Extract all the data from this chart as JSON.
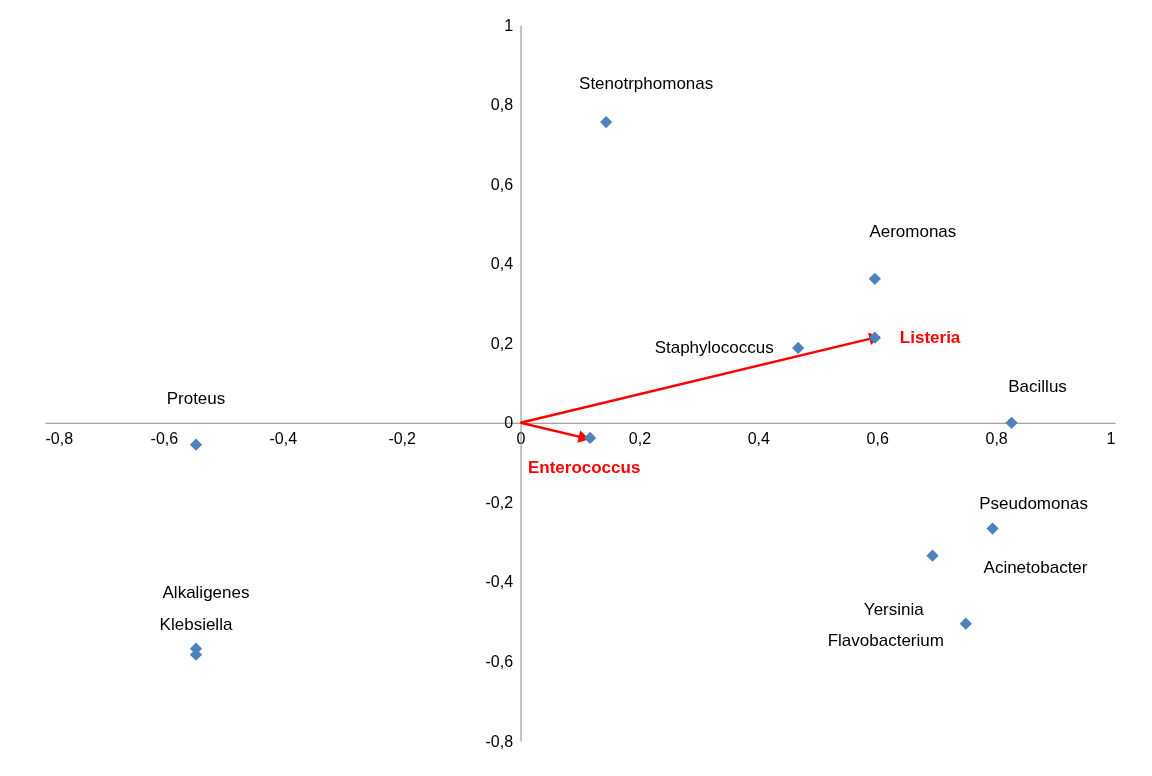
{
  "chart_data": {
    "type": "scatter",
    "xlim": [
      -0.8,
      1
    ],
    "ylim": [
      -0.8,
      1
    ],
    "xticks": [
      {
        "value": -0.8,
        "label": "-0,8"
      },
      {
        "value": -0.6,
        "label": "-0,6"
      },
      {
        "value": -0.4,
        "label": "-0,4"
      },
      {
        "value": -0.2,
        "label": "-0,2"
      },
      0,
      {
        "value": 0.2,
        "label": "0,2"
      },
      {
        "value": 0.4,
        "label": "0,4"
      },
      {
        "value": 0.6,
        "label": "0,6"
      },
      {
        "value": 0.8,
        "label": "0,8"
      },
      1
    ],
    "yticks": [
      {
        "value": -0.8,
        "label": "-0,8"
      },
      {
        "value": -0.6,
        "label": "-0,6"
      },
      {
        "value": -0.4,
        "label": "-0,4"
      },
      {
        "value": -0.2,
        "label": "-0,2"
      },
      0,
      {
        "value": 0.2,
        "label": "0,2"
      },
      {
        "value": 0.4,
        "label": "0,4"
      },
      {
        "value": 0.6,
        "label": "0,6"
      },
      {
        "value": 0.8,
        "label": "0,8"
      },
      1
    ],
    "grid": false,
    "marker": "diamond",
    "series": [
      {
        "color": "#4f81bd",
        "x": [
          0.144,
          0.596,
          0.596,
          0.467,
          0.826,
          0.117,
          -0.546,
          -0.546,
          -0.546,
          0.794,
          0.693,
          0.749
        ],
        "values": [
          0.756,
          0.362,
          0.214,
          0.188,
          0.0,
          -0.038,
          -0.055,
          -0.568,
          -0.583,
          -0.266,
          -0.334,
          -0.505
        ]
      },
      {
        "type": "line",
        "name": "Listeria",
        "color": "#ff0000",
        "marker": "triangle",
        "line_style": "solid",
        "x": [
          0,
          0.596
        ],
        "values": [
          0,
          0.214
        ]
      },
      {
        "type": "line",
        "name": "Enterococcus",
        "color": "#ff0000",
        "marker": "triangle",
        "line_style": "solid",
        "x": [
          0,
          0.107
        ],
        "values": [
          0,
          -0.038
        ]
      }
    ],
    "annotations": [
      {
        "text": "Stenotrphomonas",
        "x": 0.144,
        "y": 0.756
      },
      {
        "text": "Aeromonas",
        "x": 0.596,
        "y": 0.362
      },
      {
        "text": "Staphylococcus",
        "x": 0.467,
        "y": 0.188
      },
      {
        "text": "Bacillus",
        "x": 0.826,
        "y": 0.0
      },
      {
        "text": "Proteus",
        "x": -0.546,
        "y": -0.055
      },
      {
        "text": "Alkaligenes",
        "x": -0.546,
        "y": -0.568
      },
      {
        "text": "Klebsiella",
        "x": -0.546,
        "y": -0.583
      },
      {
        "text": "Pseudomonas",
        "x": 0.794,
        "y": -0.266
      },
      {
        "text": "Acinetobacter",
        "x": 0.693,
        "y": -0.334
      },
      {
        "text": "Yersinia",
        "x": 0.749,
        "y": -0.505
      },
      {
        "text": "Flavobacterium",
        "x": 0.749,
        "y": -0.505
      }
    ]
  }
}
